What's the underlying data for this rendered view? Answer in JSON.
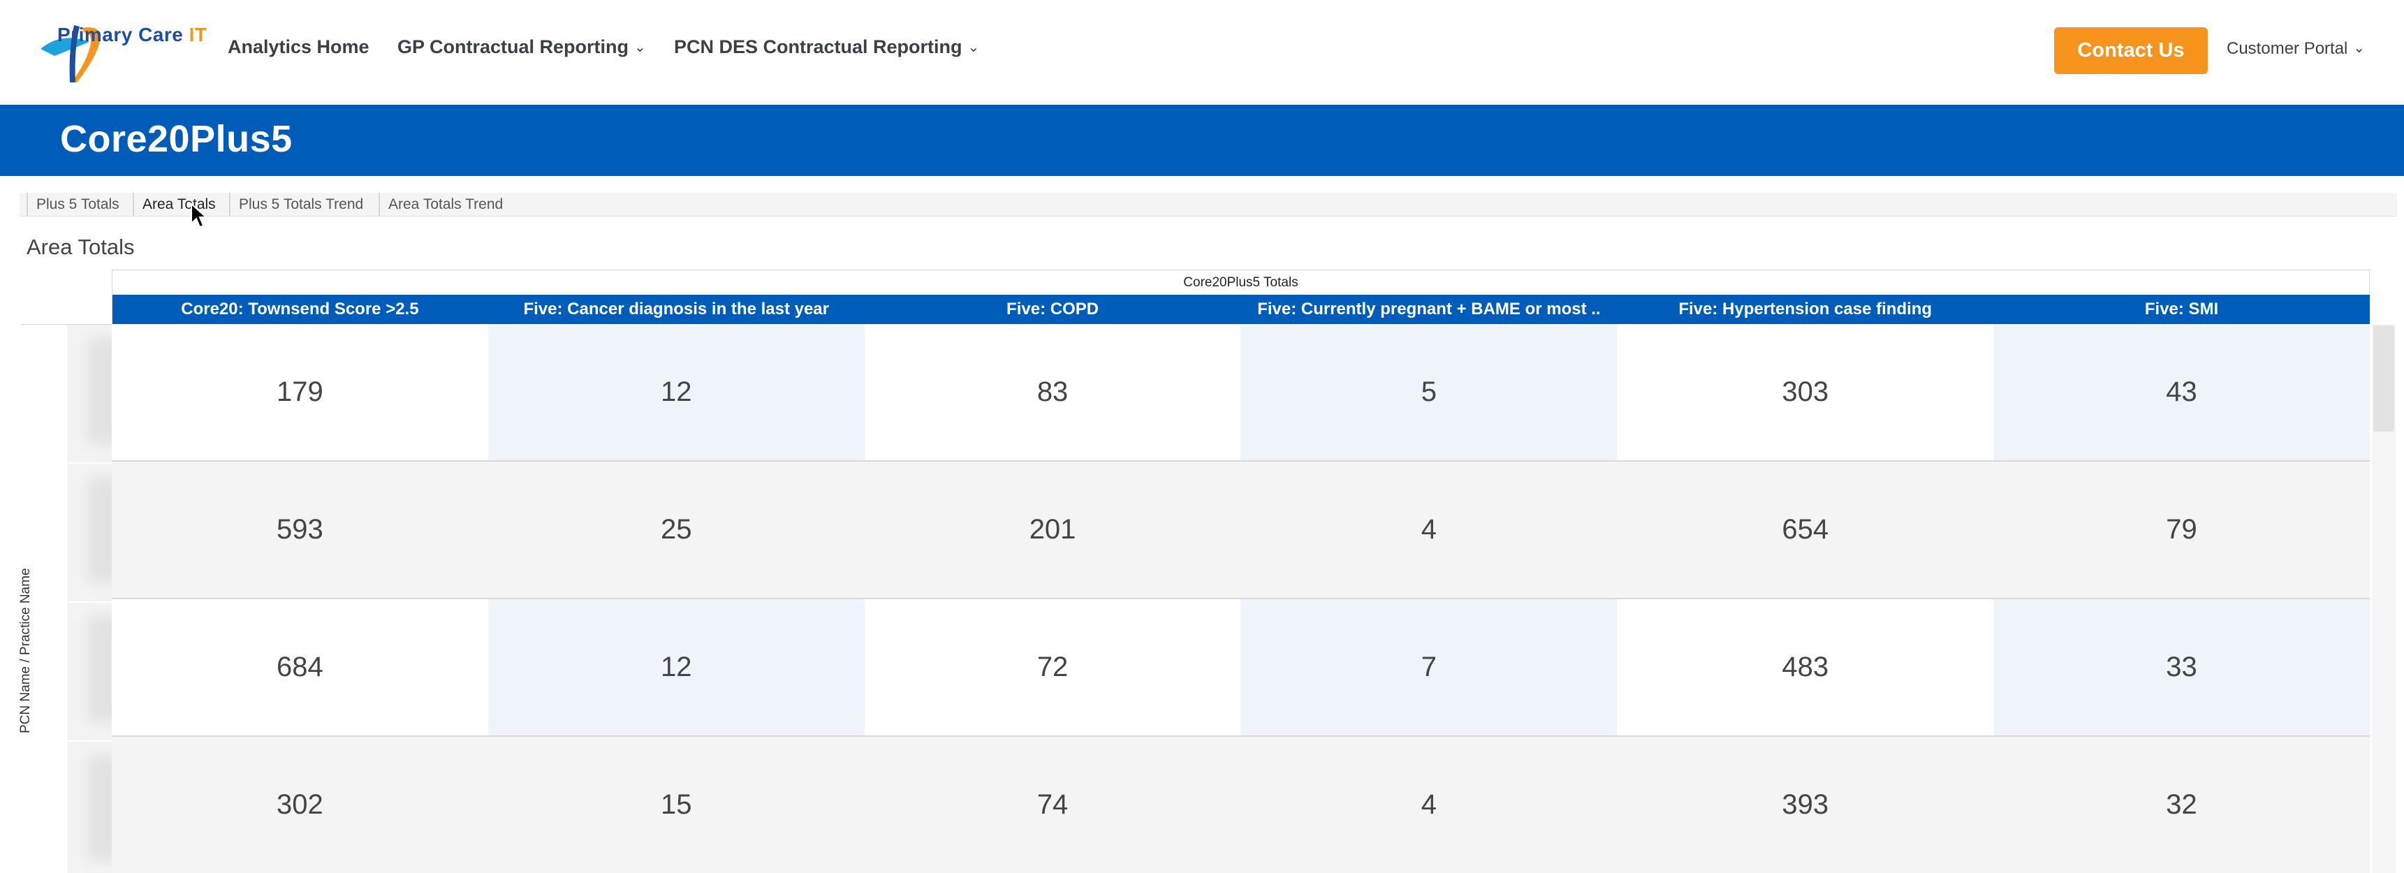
{
  "nav": {
    "logo": {
      "text_a": "Primary Care",
      "text_b": "IT",
      "accent": "#f7941d",
      "brand": "#1f4e9c"
    },
    "items": [
      {
        "label": "Analytics Home",
        "has_caret": false
      },
      {
        "label": "GP Contractual Reporting",
        "has_caret": true
      },
      {
        "label": "PCN DES Contractual Reporting",
        "has_caret": true
      }
    ],
    "contact_label": "Contact Us",
    "portal_label": "Customer Portal",
    "caret_icon": "chevron-down-icon"
  },
  "banner": {
    "title": "Core20Plus5",
    "color": "#005cb9"
  },
  "tabs": [
    {
      "label": "Plus 5 Totals",
      "active": false
    },
    {
      "label": "Area Totals",
      "active": true
    },
    {
      "label": "Plus 5 Totals Trend",
      "active": false
    },
    {
      "label": "Area Totals Trend",
      "active": false
    }
  ],
  "view_title": "Area Totals",
  "table": {
    "super_header": "Core20Plus5 Totals",
    "row_axis_label": "PCN Name / Practice Name",
    "columns": [
      "Core20: Townsend Score >2.5",
      "Five: Cancer diagnosis in the last year",
      "Five: COPD",
      "Five: Currently pregnant + BAME or most ..",
      "Five: Hypertension case finding",
      "Five: SMI"
    ],
    "rows": [
      [
        "179",
        "12",
        "83",
        "5",
        "303",
        "43"
      ],
      [
        "593",
        "25",
        "201",
        "4",
        "654",
        "79"
      ],
      [
        "684",
        "12",
        "72",
        "7",
        "483",
        "33"
      ],
      [
        "302",
        "15",
        "74",
        "4",
        "393",
        "32"
      ]
    ]
  }
}
